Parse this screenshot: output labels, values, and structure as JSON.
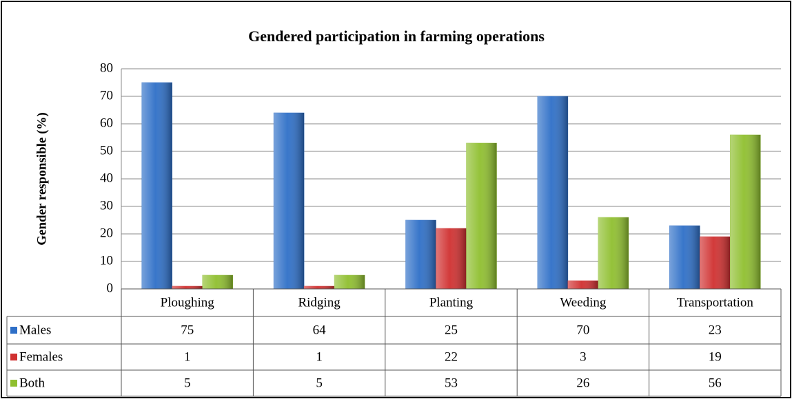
{
  "chart_data": {
    "type": "bar",
    "title": "Gendered participation in farming operations",
    "y_label": "Gender responsible  (%)",
    "categories": [
      "Ploughing",
      "Ridging",
      "Planting",
      "Weeding",
      "Transportation"
    ],
    "series": [
      {
        "name": "Males",
        "color": "#2e6fc7",
        "values": [
          75,
          64,
          25,
          70,
          23
        ]
      },
      {
        "name": "Females",
        "color": "#d03030",
        "values": [
          1,
          1,
          22,
          3,
          19
        ]
      },
      {
        "name": "Both",
        "color": "#8fbf2f",
        "values": [
          5,
          5,
          53,
          26,
          56
        ]
      }
    ],
    "ylim": [
      0,
      80
    ],
    "yticks": [
      0,
      10,
      20,
      30,
      40,
      50,
      60,
      70,
      80
    ],
    "grid": true,
    "data_table": true
  }
}
